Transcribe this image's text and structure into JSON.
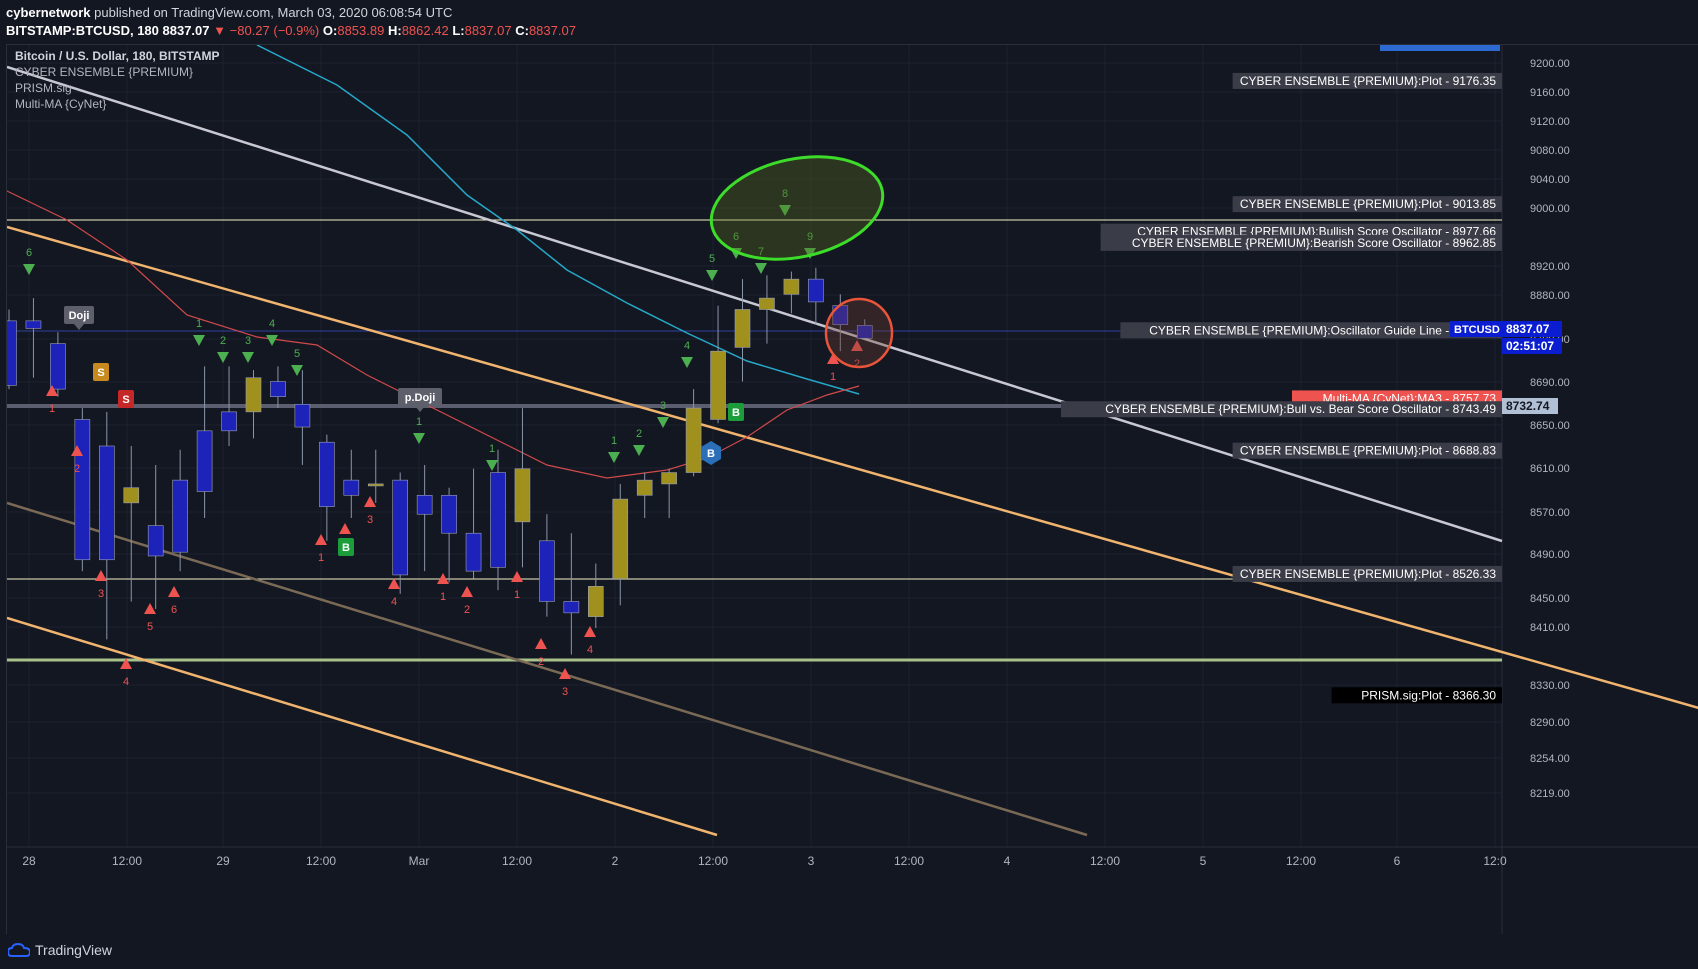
{
  "header": {
    "author": "cybernetwork",
    "published_text": "published on TradingView.com, March 03, 2020 06:08:54 UTC",
    "symbol": "BITSTAMP:BTCUSD, 180",
    "last": "8837.07",
    "change": "−80.27 (−0.9%)",
    "o_label": "O:",
    "o": "8853.89",
    "h_label": "H:",
    "h": "8862.42",
    "l_label": "L:",
    "l": "8837.07",
    "c_label": "C:",
    "c": "8837.07"
  },
  "legend": {
    "title": "Bitcoin / U.S. Dollar, 180, BITSTAMP",
    "studies": [
      "CYBER ENSEMBLE {PREMIUM}",
      "PRISM.sig",
      "Multi-MA {CyNet}"
    ]
  },
  "footer": {
    "brand": "TradingView"
  },
  "colors": {
    "background": "#131722",
    "up": "#a0901e",
    "down": "#1d22b8",
    "wick": "#8a95a8",
    "buy_arrow": "#4caf50",
    "sell_arrow": "#ef5350",
    "channel": "#f0b46e",
    "trendline": "#c8c8d2",
    "ma_cyan": "#26a8c8",
    "ma_red": "#d04a4a",
    "green_circle": "#3ddc2a",
    "red_circle": "#e8553a"
  },
  "chart_data": {
    "type": "candlestick",
    "y_ticks": [
      "9200.00",
      "9160.00",
      "9120.00",
      "9080.00",
      "9040.00",
      "9000.00",
      "8920.00",
      "8880.00",
      "8780.00",
      "8690.00",
      "8650.00",
      "8610.00",
      "8570.00",
      "8490.00",
      "8450.00",
      "8410.00",
      "8330.00",
      "8290.00",
      "8254.00",
      "8219.00"
    ],
    "x_ticks": [
      "28",
      "12:00",
      "29",
      "12:00",
      "Mar",
      "12:00",
      "2",
      "12:00",
      "3",
      "12:00",
      "4",
      "12:00",
      "5",
      "12:00",
      "6",
      "12:0"
    ],
    "candles": [
      {
        "o": 8860,
        "h": 8875,
        "l": 8770,
        "c": 8775
      },
      {
        "o": 8860,
        "h": 8890,
        "l": 8785,
        "c": 8850
      },
      {
        "o": 8830,
        "h": 8845,
        "l": 8760,
        "c": 8770
      },
      {
        "o": 8730,
        "h": 8745,
        "l": 8530,
        "c": 8545
      },
      {
        "o": 8695,
        "h": 8740,
        "l": 8440,
        "c": 8545
      },
      {
        "o": 8620,
        "h": 8695,
        "l": 8490,
        "c": 8640
      },
      {
        "o": 8590,
        "h": 8670,
        "l": 8480,
        "c": 8550
      },
      {
        "o": 8650,
        "h": 8690,
        "l": 8530,
        "c": 8555
      },
      {
        "o": 8715,
        "h": 8800,
        "l": 8600,
        "c": 8635
      },
      {
        "o": 8740,
        "h": 8800,
        "l": 8695,
        "c": 8715
      },
      {
        "o": 8740,
        "h": 8795,
        "l": 8705,
        "c": 8785
      },
      {
        "o": 8780,
        "h": 8800,
        "l": 8745,
        "c": 8760
      },
      {
        "o": 8750,
        "h": 8795,
        "l": 8670,
        "c": 8720
      },
      {
        "o": 8700,
        "h": 8710,
        "l": 8570,
        "c": 8615
      },
      {
        "o": 8650,
        "h": 8690,
        "l": 8600,
        "c": 8630
      },
      {
        "o": 8645,
        "h": 8690,
        "l": 8620,
        "c": 8645
      },
      {
        "o": 8650,
        "h": 8660,
        "l": 8500,
        "c": 8525
      },
      {
        "o": 8630,
        "h": 8670,
        "l": 8530,
        "c": 8605
      },
      {
        "o": 8630,
        "h": 8640,
        "l": 8515,
        "c": 8580
      },
      {
        "o": 8580,
        "h": 8665,
        "l": 8520,
        "c": 8530
      },
      {
        "o": 8660,
        "h": 8690,
        "l": 8505,
        "c": 8535
      },
      {
        "o": 8595,
        "h": 8745,
        "l": 8535,
        "c": 8665
      },
      {
        "o": 8570,
        "h": 8605,
        "l": 8470,
        "c": 8490
      },
      {
        "o": 8490,
        "h": 8580,
        "l": 8420,
        "c": 8475
      },
      {
        "o": 8470,
        "h": 8540,
        "l": 8455,
        "c": 8510
      },
      {
        "o": 8520,
        "h": 8645,
        "l": 8485,
        "c": 8625
      },
      {
        "o": 8630,
        "h": 8660,
        "l": 8600,
        "c": 8650
      },
      {
        "o": 8645,
        "h": 8665,
        "l": 8600,
        "c": 8660
      },
      {
        "o": 8660,
        "h": 8770,
        "l": 8655,
        "c": 8745
      },
      {
        "o": 8730,
        "h": 8880,
        "l": 8725,
        "c": 8820
      },
      {
        "o": 8825,
        "h": 8915,
        "l": 8780,
        "c": 8875
      },
      {
        "o": 8875,
        "h": 8920,
        "l": 8830,
        "c": 8890
      },
      {
        "o": 8895,
        "h": 8925,
        "l": 8870,
        "c": 8915
      },
      {
        "o": 8915,
        "h": 8930,
        "l": 8855,
        "c": 8885
      },
      {
        "o": 8880,
        "h": 8895,
        "l": 8820,
        "c": 8855
      },
      {
        "o": 8854,
        "h": 8862,
        "l": 8837,
        "c": 8837
      }
    ]
  },
  "price_labels": [
    {
      "text": "CYBER ENSEMBLE {PREMIUM}:Plot - 9176.35",
      "price": 9176.35,
      "bg": "#3a3d47",
      "fg": "#ffffff"
    },
    {
      "text": "CYBER ENSEMBLE {PREMIUM}:Plot - 9013.85",
      "price": 9013.85,
      "bg": "#3a3d47",
      "fg": "#ffffff"
    },
    {
      "text": "CYBER ENSEMBLE {PREMIUM}:Bullish Score Oscillator - 8977.66",
      "price": 8977.66,
      "bg": "#3a3d47",
      "fg": "#ffffff"
    },
    {
      "text": "CYBER ENSEMBLE {PREMIUM}:Bearish Score Oscillator - 8962.85",
      "price": 8962.85,
      "bg": "#3a3d47",
      "fg": "#ffffff"
    },
    {
      "text": "CYBER ENSEMBLE {PREMIUM}:Oscillator Guide Line - 8847.61",
      "price": 8847.61,
      "bg": "#3a3d47",
      "fg": "#ffffff"
    },
    {
      "text": "Multi-MA {CyNet}:MA3 - 8757.73",
      "price": 8757.73,
      "bg": "#ef5350",
      "fg": "#ffffff"
    },
    {
      "text": "CYBER ENSEMBLE {PREMIUM}:Bull vs. Bear Score Oscillator - 8743.49",
      "price": 8743.49,
      "bg": "#3a3d47",
      "fg": "#ffffff"
    },
    {
      "text": "CYBER ENSEMBLE {PREMIUM}:Plot - 8688.83",
      "price": 8688.83,
      "bg": "#3a3d47",
      "fg": "#ffffff"
    },
    {
      "text": "CYBER ENSEMBLE {PREMIUM}:Plot - 8526.33",
      "price": 8526.33,
      "bg": "#3a3d47",
      "fg": "#ffffff"
    },
    {
      "text": "PRISM.sig:Plot - 8366.30",
      "price": 8366.3,
      "bg": "#000000",
      "fg": "#ffffff"
    }
  ],
  "axis_badges": [
    {
      "text": "8837.07",
      "bg": "#0a1dd0"
    },
    {
      "text": "02:51:07",
      "bg": "#0a1dd0"
    },
    {
      "text": "8732.74",
      "bg": "#b2c0d6"
    }
  ],
  "badge_prefix": "BTCUSD - ",
  "markers": {
    "doji": "Doji",
    "pdoji": "p.Doji",
    "s": "S",
    "b": "B",
    "sell_counts": [
      "1",
      "2",
      "3",
      "4",
      "5",
      "6",
      "3",
      "1",
      "4",
      "1",
      "2",
      "1",
      "2",
      "3",
      "4",
      "1",
      "2"
    ],
    "buy_counts": [
      "6",
      "1",
      "2",
      "3",
      "4",
      "5",
      "1",
      "1",
      "1",
      "2",
      "3",
      "4",
      "5",
      "6",
      "7",
      "8",
      "9"
    ]
  }
}
